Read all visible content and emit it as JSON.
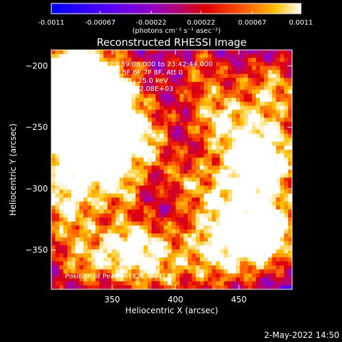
{
  "chart_data": {
    "type": "heatmap",
    "title": "Reconstructed RHESSI Image",
    "xlabel": "Heliocentric X (arcsec)",
    "ylabel": "Heliocentric Y (arcsec)",
    "xlim": [
      302,
      492
    ],
    "ylim": [
      -382,
      -187
    ],
    "xticks": [
      350,
      400,
      450
    ],
    "yticks": [
      -200,
      -250,
      -300,
      -350
    ],
    "colorbar": {
      "ticks": [
        -0.0011,
        -0.00067,
        -0.00022,
        0.00022,
        0.00067,
        0.0011
      ],
      "tick_labels": [
        "-0.0011",
        "-0.00067",
        "-0.00022",
        "0.00022",
        "0.00067",
        "0.0011"
      ],
      "unit_label": "(photons cm⁻² s⁻¹ asec⁻²)",
      "range": [
        -0.0011,
        0.0011
      ]
    },
    "annotations": [
      "15-Sep-2005 23:39:08.000 to 23:42:44.000",
      "Detectors: 3F 4F 5F 6F 7F 8F, Att 0",
      "Energy Range: 12.0 - 25.0 keV",
      "Clean     Total counts: 2.08E+03"
    ],
    "peak_label": "Position of Peak = [321,-334]",
    "peak": [
      321,
      -334
    ],
    "footer": "2-May-2022 14:50",
    "colors": {
      "background": "#000000",
      "foreground": "#ffffff",
      "cmap": [
        "#0000ff",
        "#5000ff",
        "#9a00c0",
        "#c00060",
        "#e00000",
        "#ff6000",
        "#ffc000",
        "#ffffff"
      ]
    }
  }
}
